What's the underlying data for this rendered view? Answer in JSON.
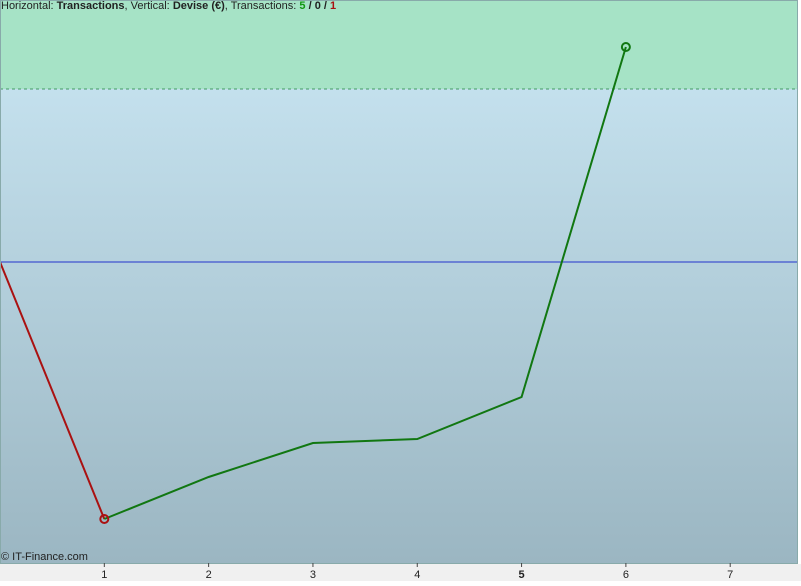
{
  "chart_data": {
    "type": "line",
    "header": {
      "h_label": "Horizontal:",
      "h_value": "Transactions",
      "v_label": ", Vertical:",
      "v_value": "Devise (€)",
      "t_label": ", Transactions:",
      "wins": "5",
      "sep1": "/",
      "flat": "0",
      "sep2": "/",
      "losses": "1"
    },
    "footer": "© IT-Finance.com",
    "xlim": [
      0,
      7.65
    ],
    "xticks": [
      1,
      2,
      3,
      4,
      5,
      6,
      7
    ],
    "bold_xtick": 5,
    "ylim": [
      -301,
      262
    ],
    "baseline": 0,
    "baseline_color": "#2233cc",
    "target": 173,
    "series": [
      {
        "color": "#aa1111",
        "x": [
          0,
          1
        ],
        "values": [
          0,
          -257
        ]
      },
      {
        "color": "#117711",
        "x": [
          1,
          2,
          3,
          4,
          5,
          6
        ],
        "values": [
          -257,
          -215,
          -181,
          -177,
          -135,
          215
        ]
      }
    ]
  }
}
